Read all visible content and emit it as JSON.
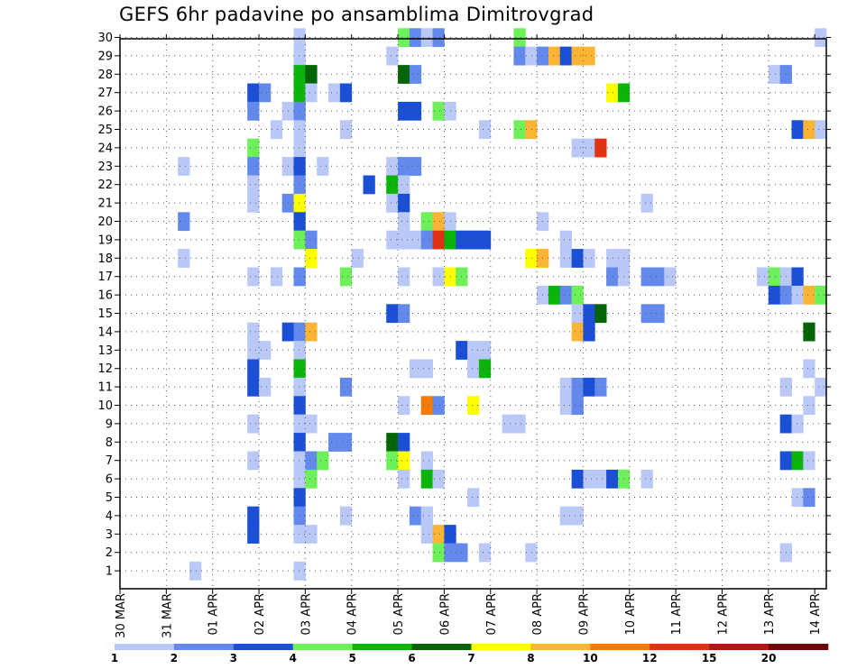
{
  "chart_data": {
    "type": "heatmap",
    "title": "GEFS 6hr padavine po ansamblima Dimitrovgrad",
    "xlabel": "",
    "ylabel": "",
    "x_ticks": [
      "30 MAR",
      "31 MAR",
      "01 APR",
      "02 APR",
      "03 APR",
      "04 APR",
      "05 APR",
      "06 APR",
      "07 APR",
      "08 APR",
      "09 APR",
      "10 APR",
      "11 APR",
      "12 APR",
      "13 APR",
      "14 APR"
    ],
    "y_ticks": [
      1,
      2,
      3,
      4,
      5,
      6,
      7,
      8,
      9,
      10,
      11,
      12,
      13,
      14,
      15,
      16,
      17,
      18,
      19,
      20,
      21,
      22,
      23,
      24,
      25,
      26,
      27,
      28,
      29,
      30
    ],
    "x_units": "6-hour steps from 30 MAR 00z",
    "grid": true,
    "colorbar": {
      "labels": [
        "1",
        "2",
        "3",
        "4",
        "5",
        "6",
        "7",
        "8",
        "10",
        "12",
        "15",
        "20"
      ],
      "colors": [
        "#b9c8f7",
        "#6289eb",
        "#1b4fd6",
        "#6ef05a",
        "#0ab40a",
        "#056405",
        "#ffff00",
        "#fbb434",
        "#f57c00",
        "#e03210",
        "#b41414",
        "#6e0808"
      ]
    },
    "cells": [
      [
        30,
        15,
        0
      ],
      [
        30,
        24,
        3
      ],
      [
        30,
        25,
        1
      ],
      [
        30,
        26,
        0
      ],
      [
        30,
        27,
        1
      ],
      [
        30,
        34,
        3
      ],
      [
        30,
        60,
        0
      ],
      [
        29,
        15,
        0
      ],
      [
        29,
        23,
        0
      ],
      [
        29,
        34,
        1
      ],
      [
        29,
        35,
        0
      ],
      [
        29,
        36,
        1
      ],
      [
        29,
        37,
        7
      ],
      [
        29,
        38,
        2
      ],
      [
        29,
        39,
        7
      ],
      [
        29,
        40,
        7
      ],
      [
        28,
        15,
        4
      ],
      [
        28,
        16,
        5
      ],
      [
        28,
        24,
        5
      ],
      [
        28,
        25,
        1
      ],
      [
        28,
        56,
        0
      ],
      [
        28,
        57,
        1
      ],
      [
        27,
        11,
        2
      ],
      [
        27,
        12,
        1
      ],
      [
        27,
        15,
        4
      ],
      [
        27,
        16,
        0
      ],
      [
        27,
        18,
        0
      ],
      [
        27,
        19,
        2
      ],
      [
        27,
        42,
        6
      ],
      [
        27,
        43,
        4
      ],
      [
        26,
        11,
        1
      ],
      [
        26,
        14,
        0
      ],
      [
        26,
        15,
        1
      ],
      [
        26,
        24,
        2
      ],
      [
        26,
        25,
        2
      ],
      [
        26,
        27,
        3
      ],
      [
        26,
        28,
        0
      ],
      [
        25,
        13,
        0
      ],
      [
        25,
        15,
        0
      ],
      [
        25,
        19,
        0
      ],
      [
        25,
        31,
        0
      ],
      [
        25,
        34,
        3
      ],
      [
        25,
        35,
        7
      ],
      [
        25,
        58,
        2
      ],
      [
        25,
        59,
        7
      ],
      [
        25,
        60,
        0
      ],
      [
        24,
        11,
        3
      ],
      [
        24,
        15,
        0
      ],
      [
        24,
        39,
        0
      ],
      [
        24,
        40,
        0
      ],
      [
        24,
        41,
        9
      ],
      [
        23,
        5,
        0
      ],
      [
        23,
        11,
        1
      ],
      [
        23,
        14,
        0
      ],
      [
        23,
        15,
        2
      ],
      [
        23,
        17,
        0
      ],
      [
        23,
        23,
        0
      ],
      [
        23,
        24,
        1
      ],
      [
        23,
        25,
        1
      ],
      [
        22,
        11,
        0
      ],
      [
        22,
        15,
        1
      ],
      [
        22,
        21,
        2
      ],
      [
        22,
        23,
        4
      ],
      [
        22,
        24,
        0
      ],
      [
        21,
        11,
        0
      ],
      [
        21,
        14,
        1
      ],
      [
        21,
        15,
        6
      ],
      [
        21,
        23,
        0
      ],
      [
        21,
        24,
        2
      ],
      [
        21,
        45,
        0
      ],
      [
        20,
        5,
        1
      ],
      [
        20,
        15,
        2
      ],
      [
        20,
        24,
        0
      ],
      [
        20,
        26,
        3
      ],
      [
        20,
        27,
        7
      ],
      [
        20,
        28,
        0
      ],
      [
        20,
        36,
        0
      ],
      [
        19,
        15,
        3
      ],
      [
        19,
        16,
        1
      ],
      [
        19,
        23,
        0
      ],
      [
        19,
        24,
        0
      ],
      [
        19,
        25,
        0
      ],
      [
        19,
        26,
        1
      ],
      [
        19,
        27,
        9
      ],
      [
        19,
        28,
        4
      ],
      [
        19,
        29,
        2
      ],
      [
        19,
        30,
        2
      ],
      [
        19,
        31,
        2
      ],
      [
        19,
        38,
        0
      ],
      [
        18,
        5,
        0
      ],
      [
        18,
        16,
        6
      ],
      [
        18,
        20,
        0
      ],
      [
        18,
        35,
        6
      ],
      [
        18,
        36,
        7
      ],
      [
        18,
        38,
        0
      ],
      [
        18,
        39,
        2
      ],
      [
        18,
        40,
        0
      ],
      [
        18,
        42,
        0
      ],
      [
        18,
        43,
        0
      ],
      [
        17,
        11,
        0
      ],
      [
        17,
        13,
        0
      ],
      [
        17,
        15,
        1
      ],
      [
        17,
        19,
        3
      ],
      [
        17,
        24,
        0
      ],
      [
        17,
        27,
        0
      ],
      [
        17,
        28,
        6
      ],
      [
        17,
        29,
        3
      ],
      [
        17,
        42,
        1
      ],
      [
        17,
        43,
        0
      ],
      [
        17,
        45,
        1
      ],
      [
        17,
        46,
        1
      ],
      [
        17,
        47,
        0
      ],
      [
        17,
        55,
        0
      ],
      [
        17,
        56,
        3
      ],
      [
        17,
        57,
        0
      ],
      [
        17,
        58,
        2
      ],
      [
        16,
        36,
        0
      ],
      [
        16,
        37,
        4
      ],
      [
        16,
        38,
        1
      ],
      [
        16,
        39,
        3
      ],
      [
        16,
        56,
        2
      ],
      [
        16,
        57,
        1
      ],
      [
        16,
        58,
        0
      ],
      [
        16,
        59,
        7
      ],
      [
        16,
        60,
        3
      ],
      [
        15,
        23,
        2
      ],
      [
        15,
        24,
        1
      ],
      [
        15,
        39,
        0
      ],
      [
        15,
        40,
        2
      ],
      [
        15,
        41,
        5
      ],
      [
        15,
        45,
        1
      ],
      [
        15,
        46,
        1
      ],
      [
        14,
        11,
        0
      ],
      [
        14,
        14,
        2
      ],
      [
        14,
        15,
        1
      ],
      [
        14,
        16,
        7
      ],
      [
        14,
        39,
        7
      ],
      [
        14,
        40,
        2
      ],
      [
        14,
        59,
        5
      ],
      [
        13,
        11,
        0
      ],
      [
        13,
        12,
        0
      ],
      [
        13,
        15,
        0
      ],
      [
        13,
        29,
        2
      ],
      [
        13,
        30,
        0
      ],
      [
        13,
        31,
        0
      ],
      [
        12,
        11,
        2
      ],
      [
        12,
        15,
        4
      ],
      [
        12,
        25,
        0
      ],
      [
        12,
        26,
        0
      ],
      [
        12,
        30,
        0
      ],
      [
        12,
        31,
        4
      ],
      [
        12,
        59,
        0
      ],
      [
        11,
        11,
        2
      ],
      [
        11,
        12,
        0
      ],
      [
        11,
        15,
        0
      ],
      [
        11,
        19,
        1
      ],
      [
        11,
        38,
        0
      ],
      [
        11,
        39,
        1
      ],
      [
        11,
        40,
        2
      ],
      [
        11,
        41,
        1
      ],
      [
        11,
        57,
        0
      ],
      [
        11,
        60,
        0
      ],
      [
        10,
        15,
        2
      ],
      [
        10,
        24,
        0
      ],
      [
        10,
        26,
        8
      ],
      [
        10,
        27,
        1
      ],
      [
        10,
        30,
        6
      ],
      [
        10,
        38,
        0
      ],
      [
        10,
        39,
        1
      ],
      [
        10,
        59,
        0
      ],
      [
        9,
        11,
        0
      ],
      [
        9,
        15,
        0
      ],
      [
        9,
        16,
        0
      ],
      [
        9,
        33,
        0
      ],
      [
        9,
        34,
        0
      ],
      [
        9,
        57,
        2
      ],
      [
        9,
        58,
        0
      ],
      [
        8,
        15,
        2
      ],
      [
        8,
        18,
        1
      ],
      [
        8,
        19,
        1
      ],
      [
        8,
        23,
        5
      ],
      [
        8,
        24,
        2
      ],
      [
        7,
        11,
        0
      ],
      [
        7,
        15,
        0
      ],
      [
        7,
        16,
        1
      ],
      [
        7,
        17,
        3
      ],
      [
        7,
        23,
        3
      ],
      [
        7,
        24,
        6
      ],
      [
        7,
        26,
        0
      ],
      [
        7,
        57,
        2
      ],
      [
        7,
        58,
        4
      ],
      [
        7,
        59,
        0
      ],
      [
        6,
        15,
        0
      ],
      [
        6,
        16,
        3
      ],
      [
        6,
        24,
        0
      ],
      [
        6,
        26,
        4
      ],
      [
        6,
        27,
        0
      ],
      [
        6,
        39,
        2
      ],
      [
        6,
        40,
        0
      ],
      [
        6,
        41,
        0
      ],
      [
        6,
        42,
        2
      ],
      [
        6,
        43,
        3
      ],
      [
        6,
        45,
        0
      ],
      [
        5,
        15,
        2
      ],
      [
        5,
        30,
        0
      ],
      [
        5,
        58,
        0
      ],
      [
        5,
        59,
        1
      ],
      [
        4,
        11,
        2
      ],
      [
        4,
        15,
        1
      ],
      [
        4,
        19,
        0
      ],
      [
        4,
        25,
        1
      ],
      [
        4,
        26,
        0
      ],
      [
        4,
        38,
        0
      ],
      [
        4,
        39,
        0
      ],
      [
        3,
        11,
        2
      ],
      [
        3,
        15,
        0
      ],
      [
        3,
        16,
        0
      ],
      [
        3,
        26,
        0
      ],
      [
        3,
        27,
        7
      ],
      [
        3,
        28,
        2
      ],
      [
        2,
        27,
        3
      ],
      [
        2,
        28,
        1
      ],
      [
        2,
        29,
        1
      ],
      [
        2,
        31,
        0
      ],
      [
        2,
        35,
        0
      ],
      [
        2,
        57,
        0
      ],
      [
        1,
        6,
        0
      ],
      [
        1,
        15,
        0
      ]
    ]
  }
}
